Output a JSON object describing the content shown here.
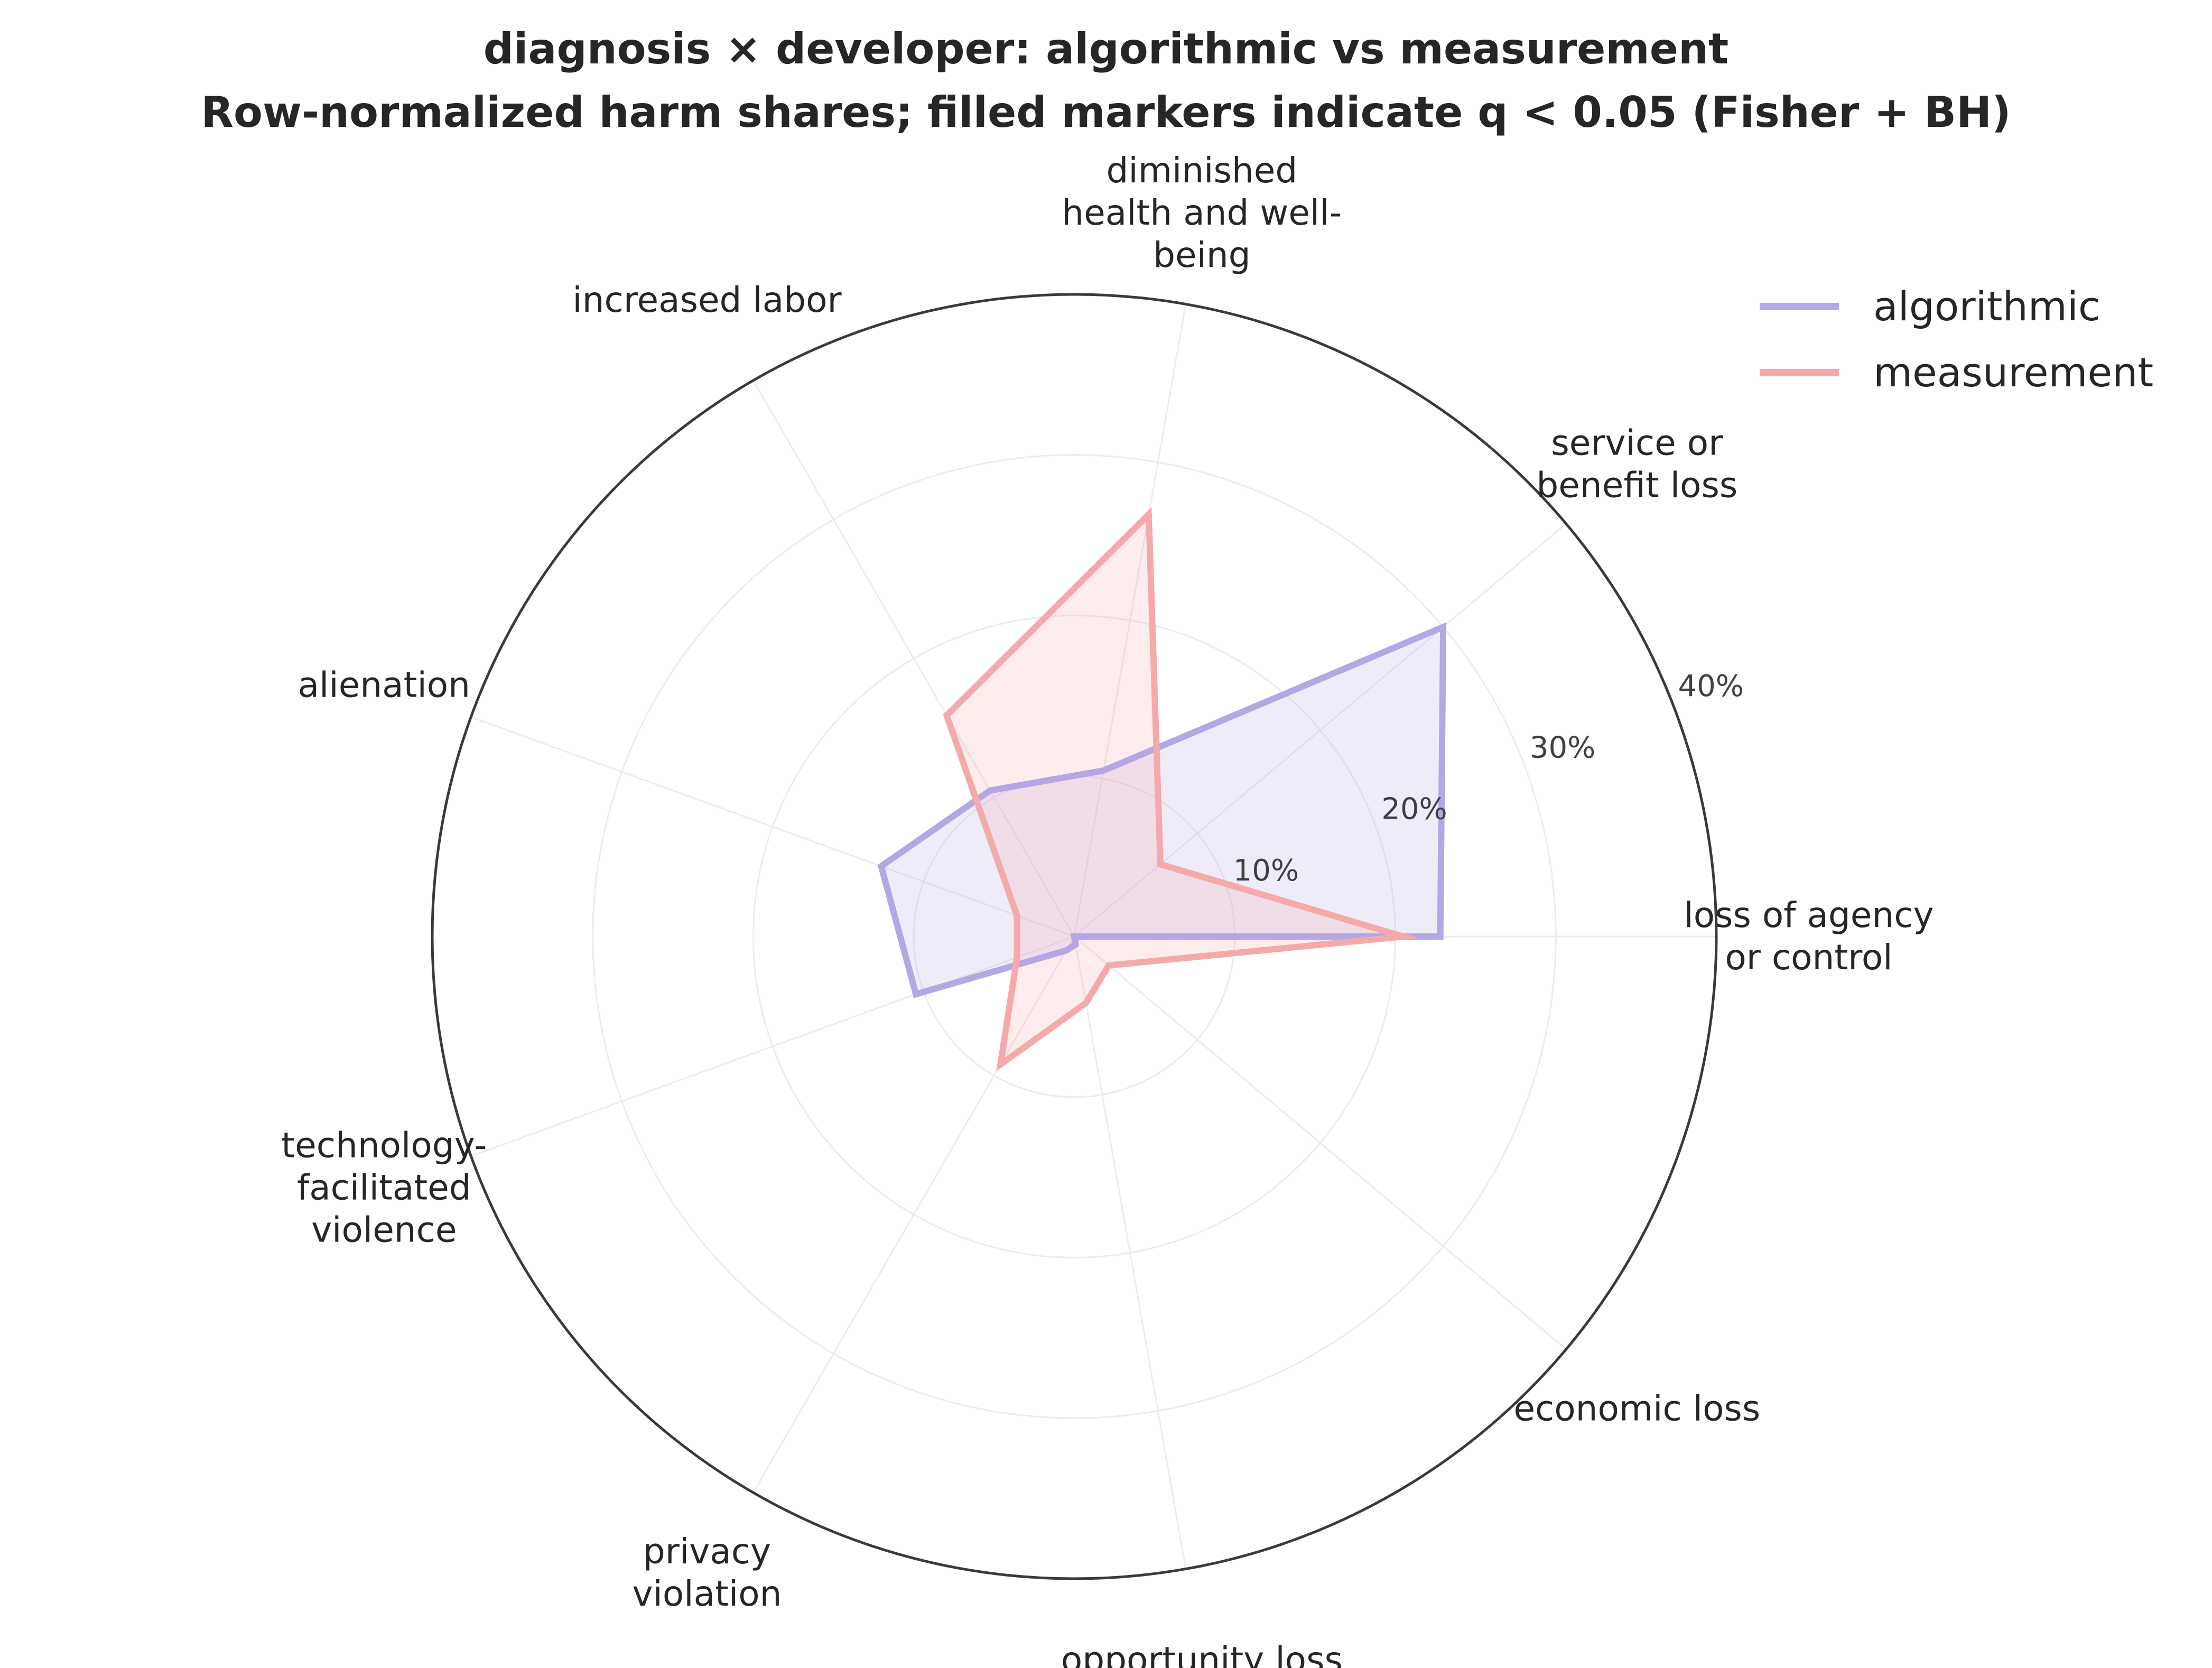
{
  "chart_data": {
    "type": "radar",
    "title_line1": "diagnosis × developer: algorithmic vs measurement",
    "title_line2": "Row-normalized harm shares; filled markers indicate q < 0.05 (Fisher + BH)",
    "categories": [
      [
        "loss of agency",
        "or control"
      ],
      [
        "service or",
        "benefit loss"
      ],
      [
        "diminished",
        "health and well-",
        "being"
      ],
      [
        "increased labor"
      ],
      [
        "alienation"
      ],
      [
        "technology-",
        "facilitated",
        "violence"
      ],
      [
        "privacy",
        "violation"
      ],
      [
        "opportunity loss"
      ],
      [
        "economic loss"
      ]
    ],
    "rlim": [
      0,
      40
    ],
    "r_ticks": [
      10,
      20,
      30,
      40
    ],
    "r_tick_labels": [
      "10%",
      "20%",
      "30%",
      "40%"
    ],
    "grid": true,
    "legend_position": "top-right",
    "series": [
      {
        "name": "algorithmic",
        "color": "#b4a7e3",
        "values": [
          22.8,
          30.0,
          10.5,
          10.5,
          12.8,
          10.5,
          1.0,
          0.5,
          0.0
        ]
      },
      {
        "name": "measurement",
        "color": "#f4aaaa",
        "values": [
          20.5,
          7.0,
          26.7,
          15.9,
          3.8,
          3.8,
          9.2,
          4.2,
          2.8
        ]
      }
    ]
  }
}
